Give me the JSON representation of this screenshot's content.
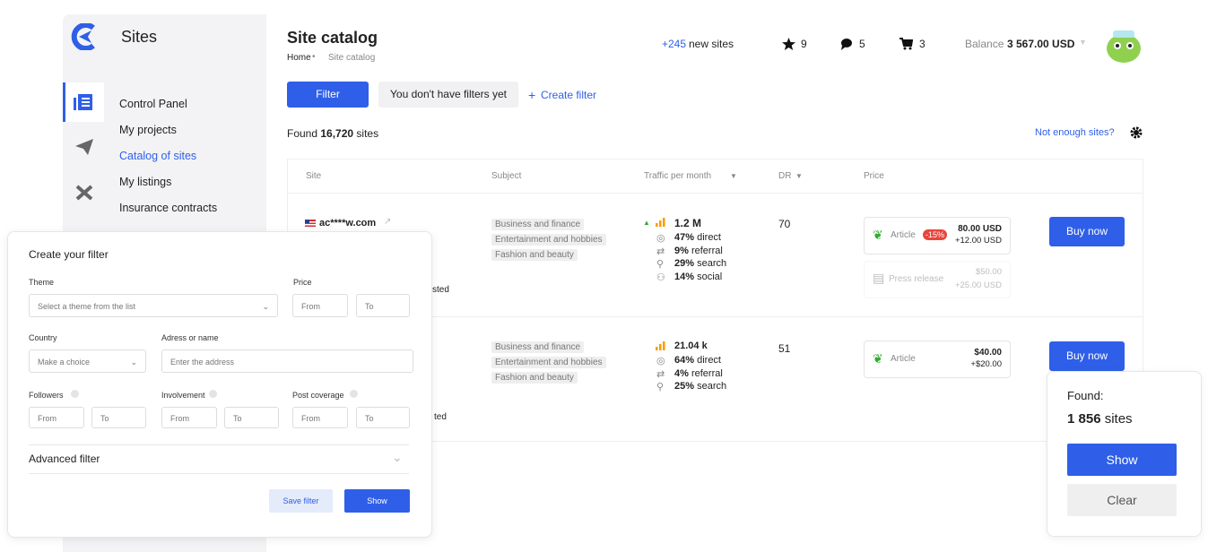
{
  "sidebar": {
    "brand": "Sites",
    "menu": [
      "Control Panel",
      "My projects",
      "Catalog of sites",
      "My listings",
      "Insurance contracts"
    ]
  },
  "header": {
    "title": "Site catalog",
    "breadcrumb": [
      "Home",
      "Site catalog"
    ],
    "new_sites": {
      "count": "+245",
      "label": "new sites"
    },
    "favorites": 9,
    "messages": 5,
    "cart": 3,
    "balance": {
      "label": "Balance",
      "amount": "3 567.00 USD"
    }
  },
  "toolbar": {
    "filter": "Filter",
    "no_filters": "You don't have filters yet",
    "create_filter": "Create filter"
  },
  "summary": {
    "found": "Found",
    "count": "16,720",
    "unit": "sites",
    "not_enough": "Not enough sites?"
  },
  "table": {
    "columns": [
      "Site",
      "Subject",
      "Traffic per month",
      "DR",
      "Price"
    ],
    "rows": [
      {
        "site": "ac****w.com",
        "subjects": [
          "Business and finance",
          "Entertainment and hobbies",
          "Fashion and beauty"
        ],
        "tag": "sted",
        "traffic": "1.2 M",
        "sources": [
          {
            "share": "47%",
            "name": "direct"
          },
          {
            "share": "9%",
            "name": "referral"
          },
          {
            "share": "29%",
            "name": "search"
          },
          {
            "share": "14%",
            "name": "social"
          }
        ],
        "dr": 70,
        "offers": [
          {
            "type": "Article",
            "discount": "-15%",
            "price": "80.00 USD",
            "extra": "+12.00 USD"
          },
          {
            "type": "Press release",
            "price": "$50.00",
            "extra": "+25.00 USD"
          }
        ],
        "action": "Buy now"
      },
      {
        "subjects": [
          "Business and finance",
          "Entertainment and hobbies",
          "Fashion and beauty"
        ],
        "tag": "ted",
        "traffic": "21.04 k",
        "sources": [
          {
            "share": "64%",
            "name": "direct"
          },
          {
            "share": "4%",
            "name": "referral"
          },
          {
            "share": "25%",
            "name": "search"
          }
        ],
        "dr": 51,
        "offers": [
          {
            "type": "Article",
            "price": "$40.00",
            "extra": "+$20.00"
          }
        ],
        "action": "Buy now"
      }
    ]
  },
  "filter_panel": {
    "title": "Create your filter",
    "theme": {
      "label": "Theme",
      "placeholder": "Select a theme from the list"
    },
    "price": {
      "label": "Price",
      "from": "From",
      "to": "To"
    },
    "country": {
      "label": "Country",
      "placeholder": "Make a choice"
    },
    "address": {
      "label": "Adress or name",
      "placeholder": "Enter the address"
    },
    "followers": {
      "label": "Followers",
      "from": "From",
      "to": "To"
    },
    "involvement": {
      "label": "Involvement",
      "from": "From",
      "to": "To"
    },
    "post_coverage": {
      "label": "Post coverage",
      "from": "From",
      "to": "To"
    },
    "advanced": "Advanced filter",
    "save": "Save filter",
    "show": "Show"
  },
  "found_popup": {
    "label": "Found:",
    "count": "1 856",
    "unit": "sites",
    "show": "Show",
    "clear": "Clear"
  }
}
